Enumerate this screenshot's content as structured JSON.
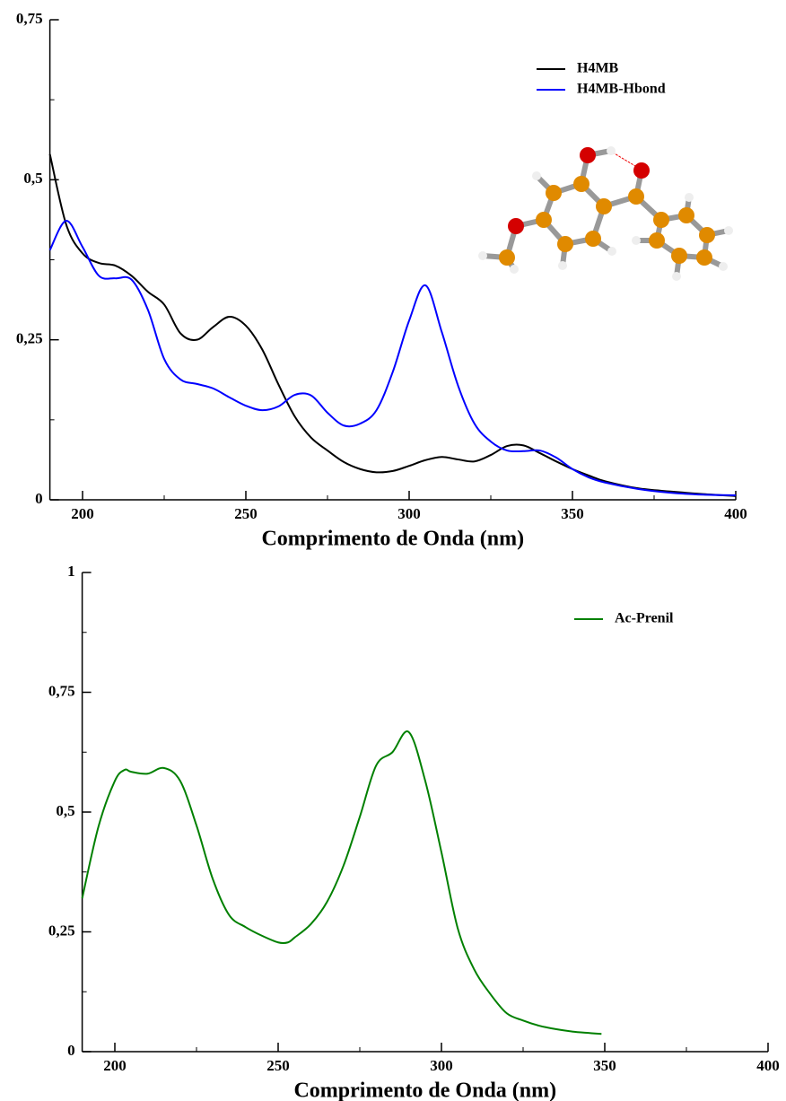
{
  "chart_data": [
    {
      "type": "line",
      "x_label": "Comprimento de Onda (nm)",
      "x": [
        190,
        195,
        200,
        205,
        210,
        215,
        220,
        225,
        230,
        235,
        240,
        245,
        250,
        255,
        260,
        265,
        270,
        275,
        280,
        285,
        290,
        295,
        300,
        305,
        310,
        315,
        320,
        325,
        330,
        335,
        340,
        345,
        350,
        355,
        360,
        370,
        380,
        390,
        400
      ],
      "series": [
        {
          "name": "H4MB",
          "color": "#000000",
          "values": [
            0.54,
            0.43,
            0.385,
            0.37,
            0.366,
            0.35,
            0.325,
            0.305,
            0.26,
            0.25,
            0.27,
            0.286,
            0.272,
            0.235,
            0.18,
            0.13,
            0.097,
            0.077,
            0.059,
            0.048,
            0.043,
            0.045,
            0.053,
            0.062,
            0.067,
            0.063,
            0.06,
            0.07,
            0.084,
            0.085,
            0.073,
            0.06,
            0.048,
            0.038,
            0.029,
            0.018,
            0.013,
            0.009,
            0.006
          ]
        },
        {
          "name": "H4MB-Hbond",
          "color": "#0000ff",
          "values": [
            0.39,
            0.436,
            0.395,
            0.35,
            0.346,
            0.344,
            0.297,
            0.22,
            0.188,
            0.181,
            0.174,
            0.16,
            0.147,
            0.14,
            0.146,
            0.164,
            0.163,
            0.136,
            0.116,
            0.119,
            0.14,
            0.2,
            0.28,
            0.335,
            0.262,
            0.178,
            0.119,
            0.091,
            0.077,
            0.076,
            0.077,
            0.066,
            0.048,
            0.035,
            0.027,
            0.017,
            0.011,
            0.008,
            0.007
          ]
        }
      ],
      "xlim": [
        190,
        400
      ],
      "ylim": [
        0,
        0.75
      ],
      "xticks": [
        200,
        250,
        300,
        350,
        400
      ],
      "yticks": [
        0,
        {
          "value": 0.25,
          "label": "0,25"
        },
        {
          "value": 0.5,
          "label": "0,5"
        },
        {
          "value": 0.75,
          "label": "0,75"
        }
      ],
      "legend": "upper right"
    },
    {
      "type": "line",
      "x_label": "Comprimento de Onda (nm)",
      "x": [
        190,
        195,
        200,
        203,
        205,
        210,
        215,
        220,
        225,
        230,
        235,
        240,
        245,
        250,
        253,
        255,
        260,
        265,
        270,
        275,
        280,
        285,
        290,
        295,
        300,
        305,
        310,
        315,
        320,
        325,
        330,
        335,
        340,
        345,
        349
      ],
      "series": [
        {
          "name": "Ac-Prenil",
          "color": "#008000",
          "values": [
            0.32,
            0.47,
            0.565,
            0.588,
            0.584,
            0.58,
            0.592,
            0.565,
            0.472,
            0.36,
            0.285,
            0.26,
            0.242,
            0.228,
            0.228,
            0.238,
            0.266,
            0.313,
            0.388,
            0.49,
            0.597,
            0.625,
            0.667,
            0.566,
            0.416,
            0.257,
            0.172,
            0.12,
            0.08,
            0.065,
            0.054,
            0.047,
            0.042,
            0.039,
            0.037
          ]
        }
      ],
      "xlim": [
        190,
        400
      ],
      "ylim": [
        0,
        1
      ],
      "xticks": [
        200,
        250,
        300,
        350,
        400
      ],
      "yticks": [
        0,
        {
          "value": 0.25,
          "label": "0,25"
        },
        {
          "value": 0.5,
          "label": "0,5"
        },
        {
          "value": 0.75,
          "label": "0,75"
        },
        1
      ],
      "legend": "upper right"
    }
  ]
}
